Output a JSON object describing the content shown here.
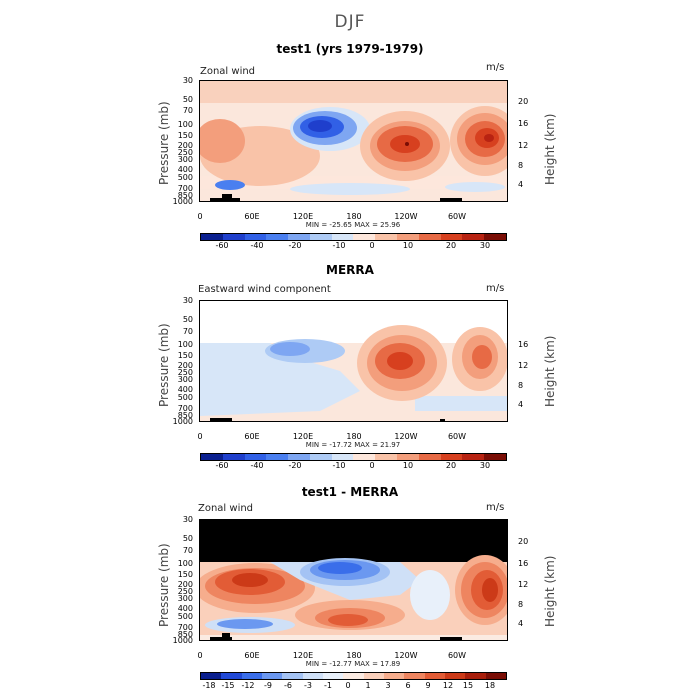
{
  "suptitle": "DJF",
  "panels": [
    {
      "id": "test1",
      "title": "test1 (yrs 1979-1979)",
      "field": "Zonal wind",
      "units": "m/s",
      "minmax": "MIN = -25.65   MAX =  25.96",
      "has_height_20": true,
      "colorbar_labels": [
        "-60",
        "-40",
        "-20",
        "-10",
        "0",
        "10",
        "20",
        "30"
      ]
    },
    {
      "id": "merra",
      "title": "MERRA",
      "field": "Eastward wind component",
      "units": "m/s",
      "minmax": "MIN = -17.72   MAX =  21.97",
      "has_height_20": false,
      "colorbar_labels": [
        "-60",
        "-40",
        "-20",
        "-10",
        "0",
        "10",
        "20",
        "30"
      ]
    },
    {
      "id": "diff",
      "title": "test1 - MERRA",
      "field": "Zonal wind",
      "units": "m/s",
      "minmax": "MIN = -12.77   MAX =  17.89",
      "has_height_20": true,
      "colorbar_labels": [
        "-18",
        "-15",
        "-12",
        "-9",
        "-6",
        "-3",
        "-1",
        "0",
        "1",
        "3",
        "6",
        "9",
        "12",
        "15",
        "18"
      ]
    }
  ],
  "axes": {
    "ylabel": "Pressure (mb)",
    "ylabel_right": "Height (km)",
    "pressure_ticks": [
      "30",
      "50",
      "70",
      "100",
      "150",
      "200",
      "250",
      "300",
      "400",
      "500",
      "700",
      "850",
      "1000"
    ],
    "height_ticks": [
      "20",
      "16",
      "12",
      "8",
      "4"
    ],
    "x_ticks": [
      "0",
      "60E",
      "120E",
      "180",
      "120W",
      "60W"
    ]
  },
  "colors": {
    "colorbar_main": [
      "#0a1f8f",
      "#1f3fcc",
      "#3160e6",
      "#4a7ff0",
      "#7ea6f2",
      "#aecbf5",
      "#d7e6f8",
      "#fde7dc",
      "#f9c3a8",
      "#f39e7c",
      "#e76a45",
      "#d7401f",
      "#b82312",
      "#7a0d05"
    ],
    "colorbar_diff": [
      "#0a1f8f",
      "#2149d6",
      "#3a6eea",
      "#6b98f0",
      "#a4c3f4",
      "#cfe0f7",
      "#e8f0fa",
      "#fbebe2",
      "#fad0bb",
      "#f6ad8d",
      "#ee8560",
      "#e25c36",
      "#cc3a18",
      "#a81e0b",
      "#7a0d05"
    ]
  },
  "chart_data": [
    {
      "type": "heatmap",
      "title": "test1 (yrs 1979-1979)",
      "subtitle": "Zonal wind",
      "xlabel": "",
      "ylabel": "Pressure (mb)",
      "y2label": "Height (km)",
      "units": "m/s",
      "x_ticks": [
        "0",
        "60E",
        "120E",
        "180",
        "120W",
        "60W"
      ],
      "y_ticks": [
        30,
        50,
        70,
        100,
        150,
        200,
        250,
        300,
        400,
        500,
        700,
        850,
        1000
      ],
      "min": -25.65,
      "max": 25.96,
      "features": [
        {
          "lon": 140,
          "p": 120,
          "value": -25
        },
        {
          "lon": 245,
          "p": 200,
          "value": 26
        },
        {
          "lon": 342,
          "p": 180,
          "value": 24
        }
      ]
    },
    {
      "type": "heatmap",
      "title": "MERRA",
      "subtitle": "Eastward wind component",
      "xlabel": "",
      "ylabel": "Pressure (mb)",
      "y2label": "Height (km)",
      "units": "m/s",
      "x_ticks": [
        "0",
        "60E",
        "120E",
        "180",
        "120W",
        "60W"
      ],
      "y_ticks": [
        30,
        50,
        70,
        100,
        150,
        200,
        250,
        300,
        400,
        500,
        700,
        850,
        1000
      ],
      "min": -17.72,
      "max": 21.97,
      "features": [
        {
          "lon": 140,
          "p": 150,
          "value": -12
        },
        {
          "lon": 240,
          "p": 200,
          "value": 22
        },
        {
          "lon": 340,
          "p": 180,
          "value": 18
        }
      ]
    },
    {
      "type": "heatmap",
      "title": "test1 - MERRA",
      "subtitle": "Zonal wind",
      "xlabel": "",
      "ylabel": "Pressure (mb)",
      "y2label": "Height (km)",
      "units": "m/s",
      "x_ticks": [
        "0",
        "60E",
        "120E",
        "180",
        "120W",
        "60W"
      ],
      "y_ticks": [
        30,
        50,
        70,
        100,
        150,
        200,
        250,
        300,
        400,
        500,
        700,
        850,
        1000
      ],
      "min": -12.77,
      "max": 17.89,
      "features": [
        {
          "lon": 50,
          "p": 250,
          "value": 15
        },
        {
          "lon": 145,
          "p": 150,
          "value": -12
        },
        {
          "lon": 340,
          "p": 250,
          "value": 17
        }
      ]
    }
  ]
}
